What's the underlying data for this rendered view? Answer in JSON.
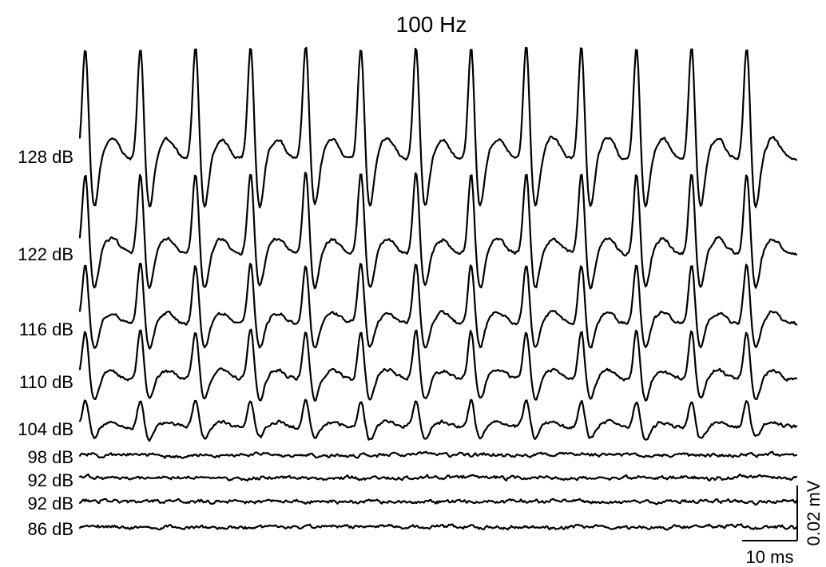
{
  "chart_data": {
    "type": "line",
    "title": "100 Hz",
    "stimulus_rate_hz": 100,
    "period_ms": 10,
    "sweep_duration_ms": 130,
    "series": [
      {
        "name": "128 dB",
        "amplitude_mV": 0.042,
        "spike_times_ms": [
          1,
          11,
          21,
          31,
          41,
          51,
          61,
          71,
          81,
          91,
          101,
          111,
          121
        ]
      },
      {
        "name": "122 dB",
        "amplitude_mV": 0.03,
        "spike_times_ms": [
          1,
          11,
          21,
          31,
          41,
          51,
          61,
          71,
          81,
          91,
          101,
          111,
          121
        ]
      },
      {
        "name": "116 dB",
        "amplitude_mV": 0.022,
        "spike_times_ms": [
          1,
          11,
          21,
          31,
          41,
          51,
          61,
          71,
          81,
          91,
          101,
          111,
          121
        ]
      },
      {
        "name": "110 dB",
        "amplitude_mV": 0.018,
        "spike_times_ms": [
          1,
          11,
          21,
          31,
          41,
          51,
          61,
          71,
          81,
          91,
          101,
          111,
          121
        ]
      },
      {
        "name": "104 dB",
        "amplitude_mV": 0.01,
        "spike_times_ms": [
          1,
          11,
          21,
          31,
          41,
          51,
          61,
          71,
          81,
          91,
          101,
          111,
          121
        ]
      },
      {
        "name": "98 dB",
        "amplitude_mV": 0.002,
        "spike_times_ms": []
      },
      {
        "name": "92 dB",
        "amplitude_mV": 0.0015,
        "spike_times_ms": []
      },
      {
        "name": "92 dB",
        "amplitude_mV": 0.0015,
        "spike_times_ms": []
      },
      {
        "name": "86 dB",
        "amplitude_mV": 0.0015,
        "spike_times_ms": []
      }
    ],
    "scale_bars": {
      "time": {
        "value": 10,
        "label": "10 ms"
      },
      "voltage": {
        "value": 0.02,
        "label": "0.02 mV"
      }
    },
    "grid": false,
    "legend": "none"
  }
}
